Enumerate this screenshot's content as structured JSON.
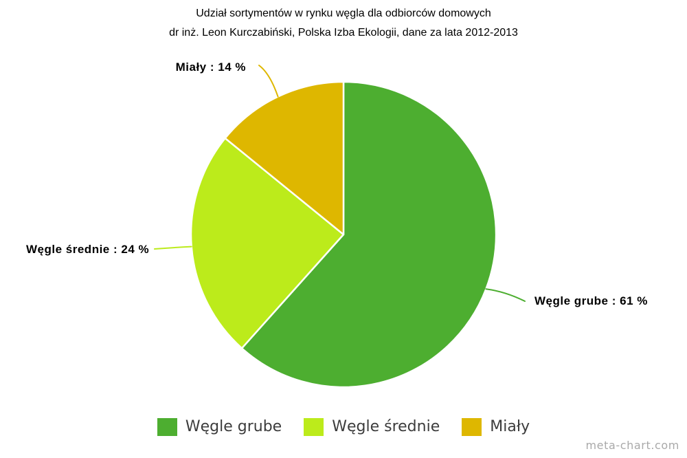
{
  "watermark": "meta-chart.com",
  "chart_data": {
    "type": "pie",
    "title": "Udział sortymentów w rynku węgla dla odbiorców domowych",
    "subtitle": "dr inż. Leon Kurczabiński, Polska Izba Ekologii, dane za lata 2012-2013",
    "categories": [
      "Węgle grube",
      "Węgle średnie",
      "Miały"
    ],
    "values": [
      61,
      24,
      14
    ],
    "unit": "%",
    "colors": [
      "#4dae30",
      "#bceb1b",
      "#deb700"
    ],
    "slice_labels": [
      "Węgle grube : 61 %",
      "Węgle średnie : 24 %",
      "Miały : 14 %"
    ],
    "legend_position": "bottom",
    "start_angle_deg": 0,
    "direction": "clockwise",
    "slice_border_color": "#ffffff"
  }
}
